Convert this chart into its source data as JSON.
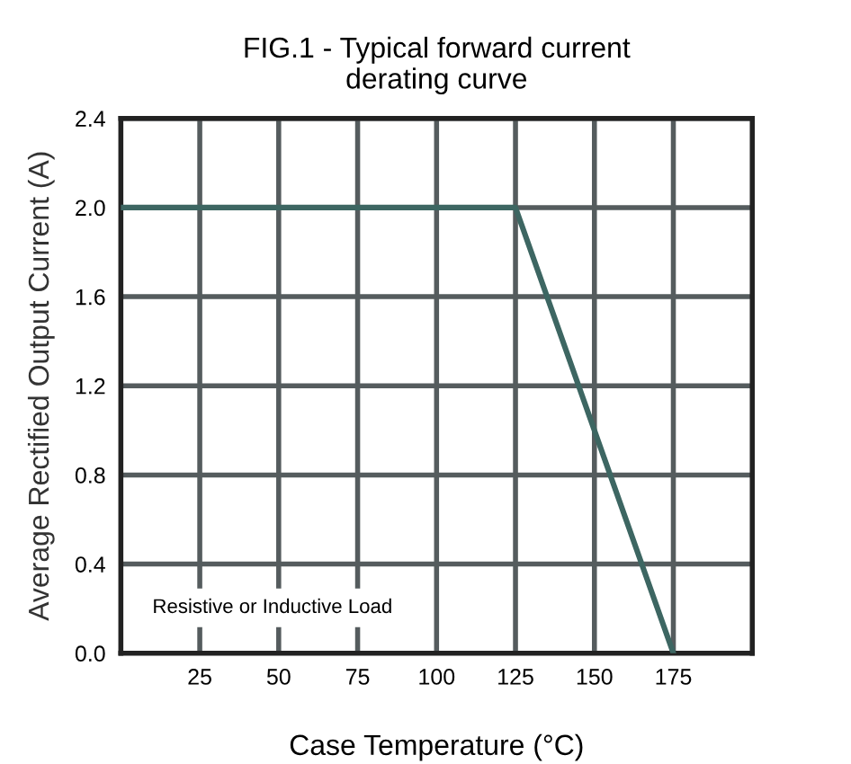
{
  "chart_data": {
    "type": "line",
    "title": "FIG.1 - Typical forward current\nderating curve",
    "xlabel": "Case Temperature (°C)",
    "ylabel": "Average Rectified Output Current (A)",
    "x": [
      0,
      125,
      175
    ],
    "series": [
      {
        "color": "#3d6662",
        "values": [
          2.0,
          2.0,
          0.0
        ]
      }
    ],
    "xlim": [
      0,
      200
    ],
    "xticks": [
      25,
      50,
      75,
      100,
      125,
      150,
      175
    ],
    "ylim": [
      0,
      2.4
    ],
    "yticks": [
      {
        "value": 0,
        "label": "0.0"
      },
      0.4,
      0.8,
      1.2,
      1.6,
      {
        "value": 2.0,
        "label": "2.0"
      },
      2.4
    ],
    "grid": true,
    "marker": "none",
    "line_style": "solid",
    "annotations": [
      "Resistive or Inductive Load"
    ]
  }
}
